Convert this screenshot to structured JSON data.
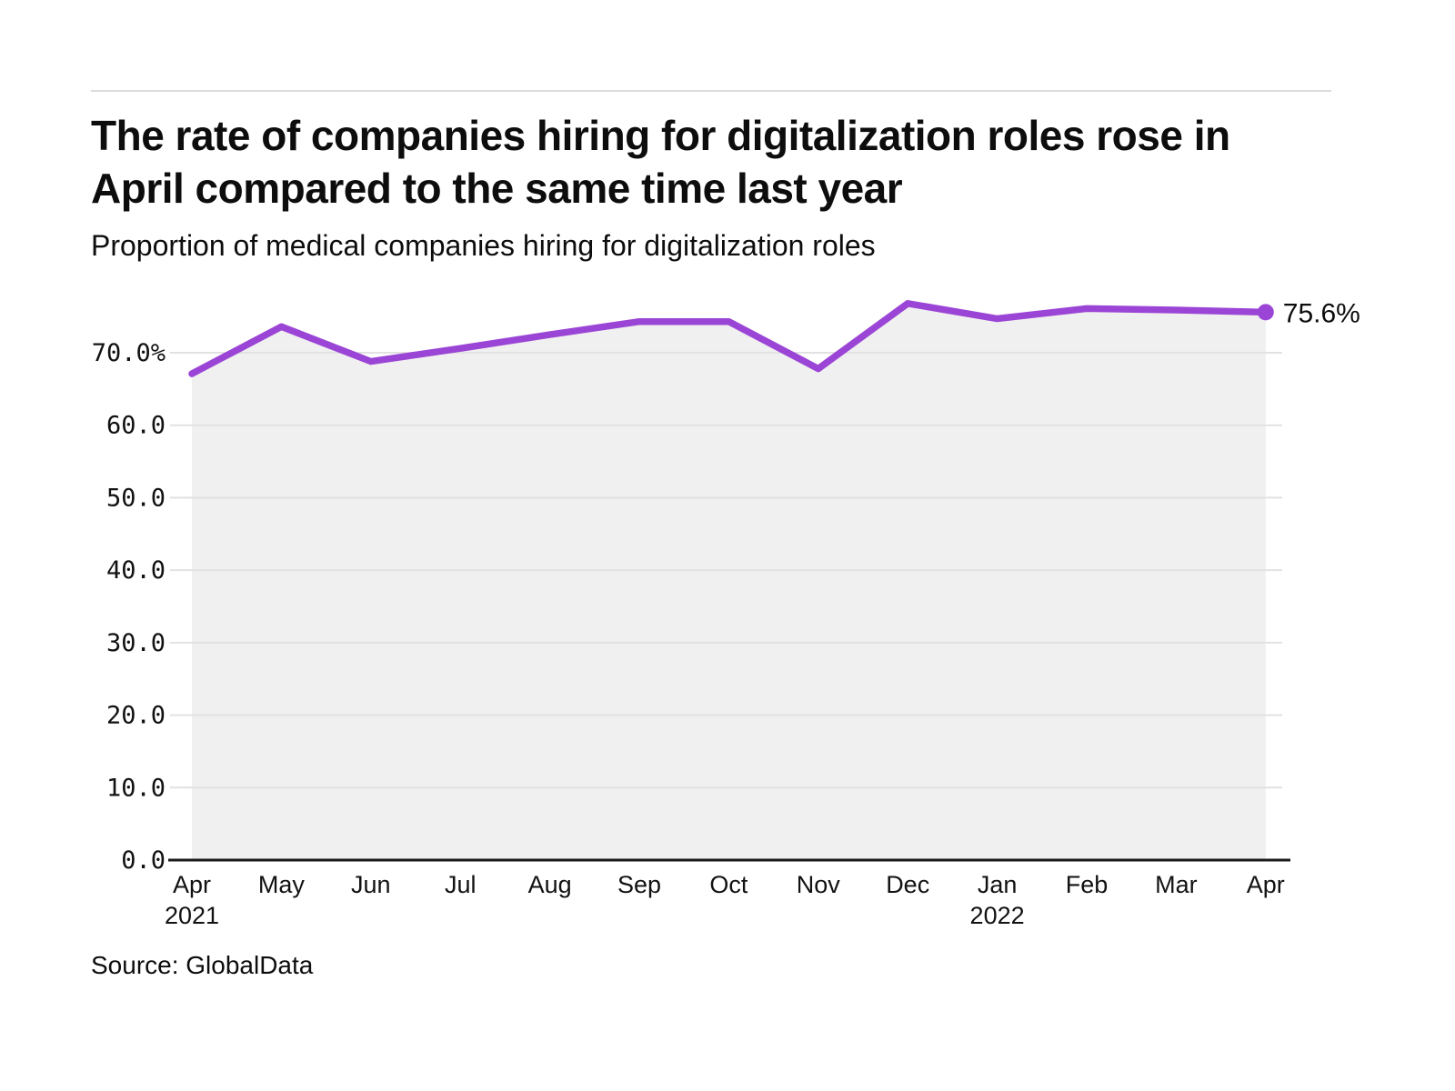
{
  "page": {
    "title": "The rate of companies hiring for digitalization roles rose in\nApril compared to the same time last year",
    "subtitle": "Proportion of medical companies hiring for digitalization roles",
    "source": "Source: GlobalData"
  },
  "chart_data": {
    "type": "line",
    "title": "The rate of companies hiring for digitalization roles rose in April compared to the same time last year",
    "subtitle": "Proportion of medical companies hiring for digitalization roles",
    "source": "Source: GlobalData",
    "categories": [
      "Apr",
      "May",
      "Jun",
      "Jul",
      "Aug",
      "Sep",
      "Oct",
      "Nov",
      "Dec",
      "Jan",
      "Feb",
      "Mar",
      "Apr"
    ],
    "year_labels": [
      {
        "index": 0,
        "label": "2021"
      },
      {
        "index": 9,
        "label": "2022"
      }
    ],
    "values": [
      67.1,
      73.6,
      68.8,
      70.6,
      72.5,
      74.3,
      74.3,
      67.8,
      76.8,
      74.7,
      76.1,
      75.9,
      75.6
    ],
    "end_label": "75.6%",
    "xlabel": "",
    "ylabel": "",
    "ylim": [
      0,
      78
    ],
    "grid": true,
    "legend": false,
    "yticks": {
      "values": [
        70,
        60,
        50,
        40,
        30,
        20,
        10,
        0
      ],
      "labels": [
        "70.0%",
        "60.0",
        "50.0",
        "40.0",
        "30.0",
        "20.0",
        "10.0",
        "0.0"
      ]
    },
    "colors": {
      "line": "#9b45d6",
      "area": "#f0f0f0",
      "grid": "#e2e2e2",
      "axis": "#1a1a1a",
      "text": "#121212",
      "rule": "#dcdcdc"
    }
  }
}
